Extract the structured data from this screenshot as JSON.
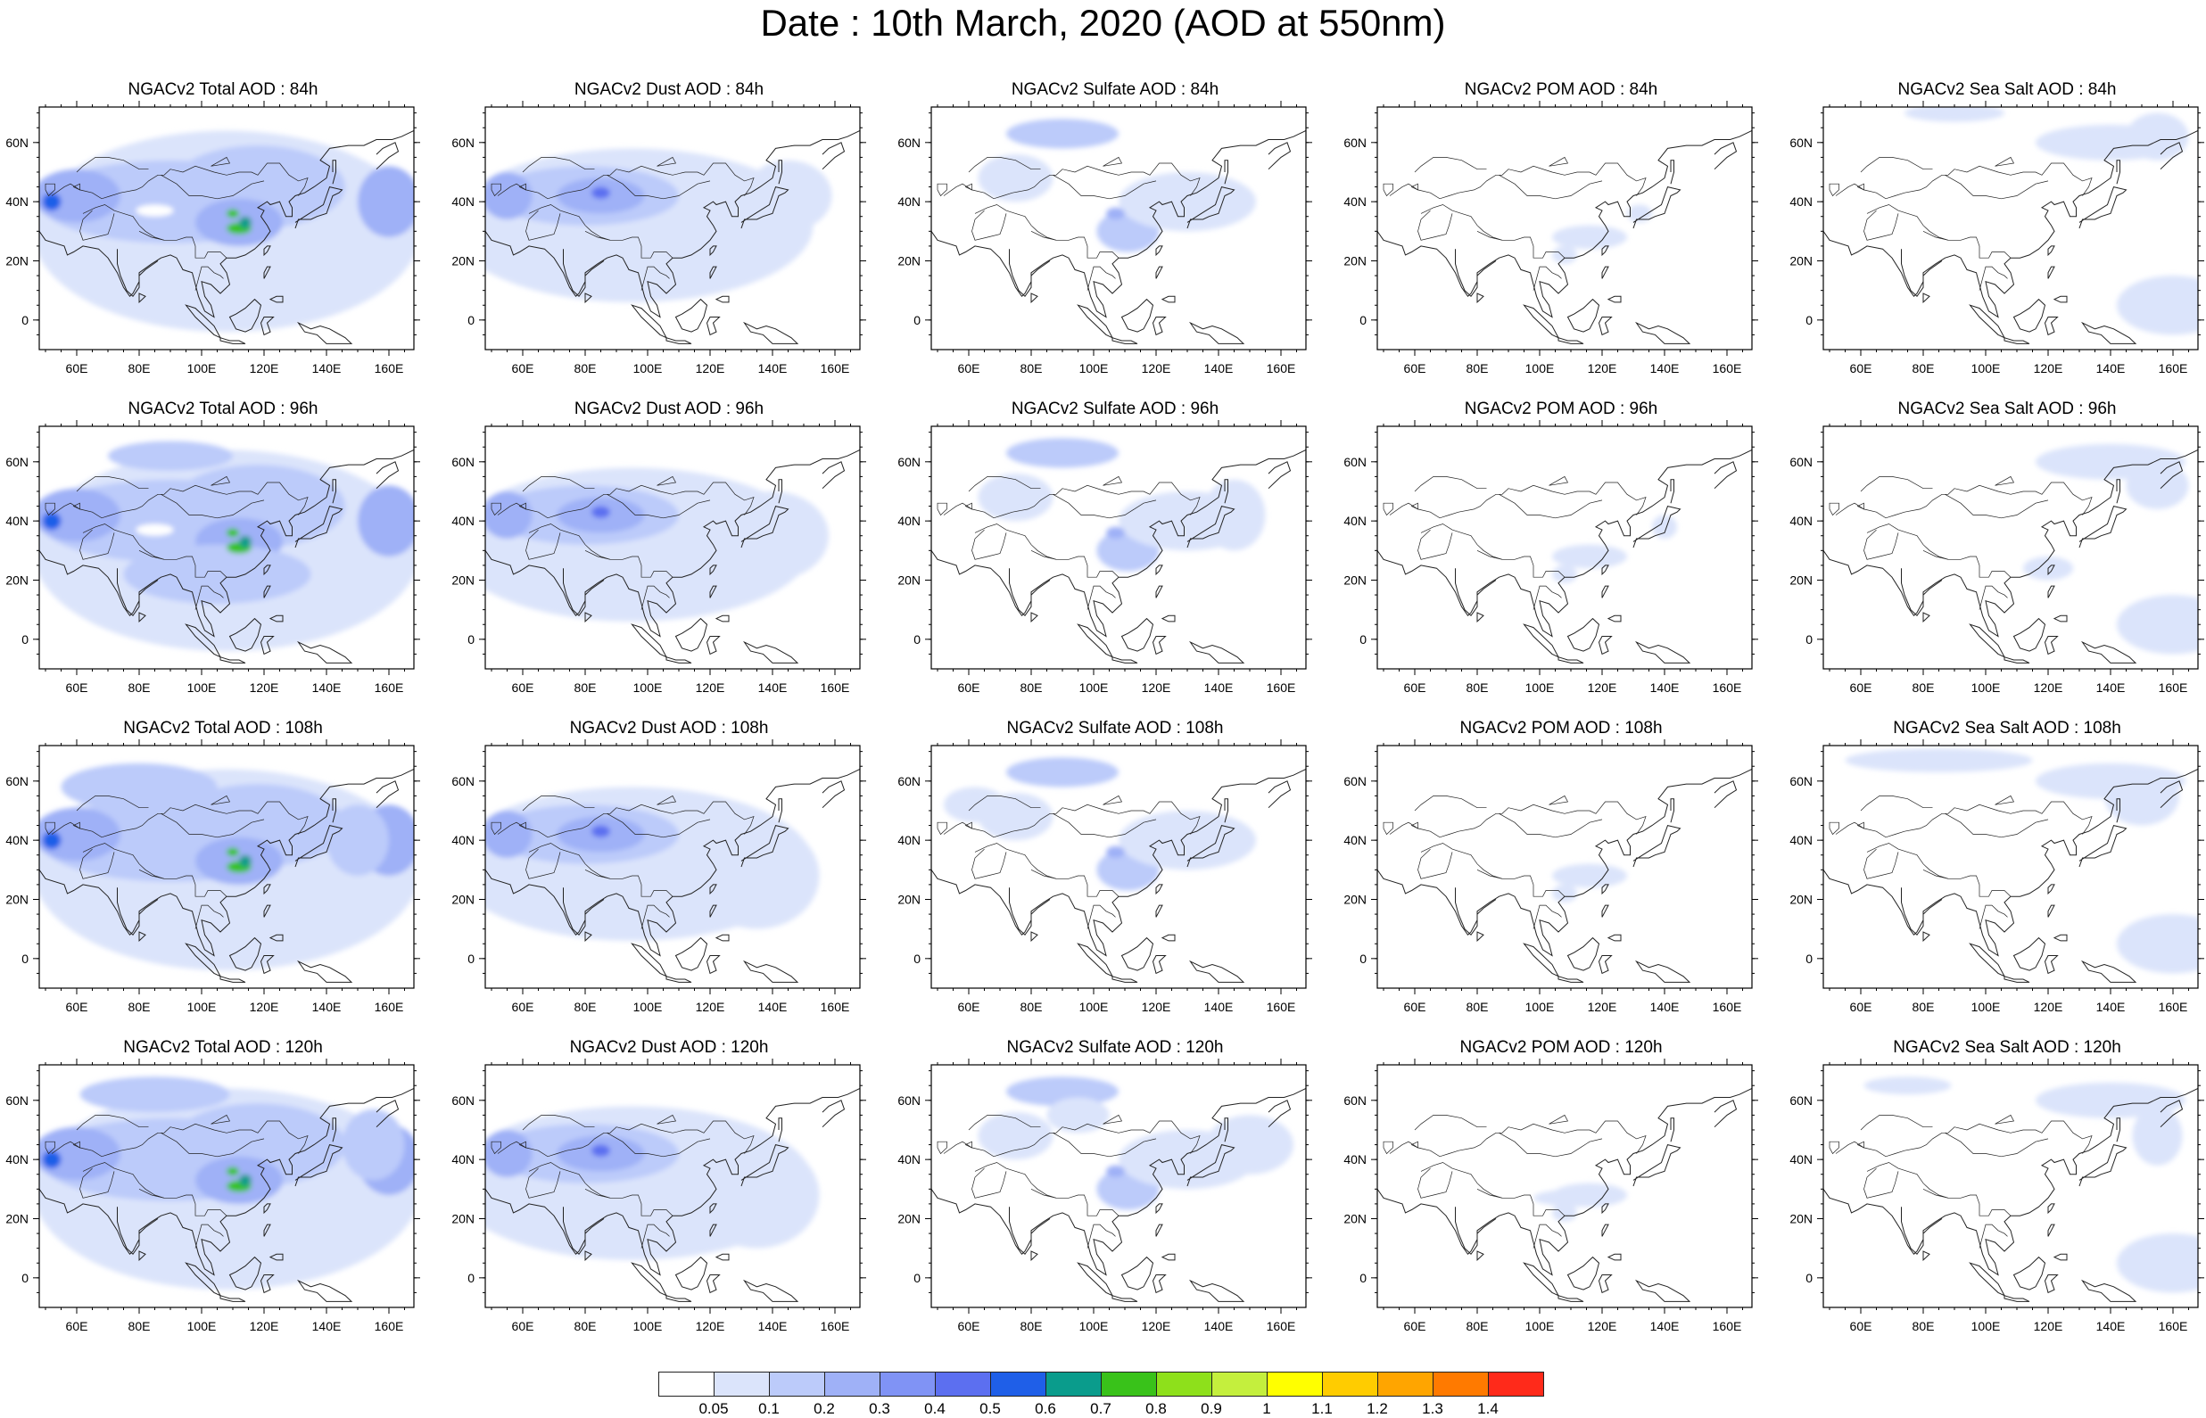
{
  "title": "Date : 10th March, 2020 (AOD at 550nm)",
  "map": {
    "lat_ticks": [
      "60N",
      "40N",
      "20N",
      "0"
    ],
    "lon_ticks": [
      "60E",
      "80E",
      "100E",
      "120E",
      "140E",
      "160E"
    ]
  },
  "panels": [
    {
      "title": "NGACv2 Total AOD : 84h",
      "variable": "Total",
      "lead": "84h"
    },
    {
      "title": "NGACv2 Dust AOD : 84h",
      "variable": "Dust",
      "lead": "84h"
    },
    {
      "title": "NGACv2 Sulfate AOD : 84h",
      "variable": "Sulfate",
      "lead": "84h"
    },
    {
      "title": "NGACv2 POM AOD : 84h",
      "variable": "POM",
      "lead": "84h"
    },
    {
      "title": "NGACv2 Sea Salt AOD : 84h",
      "variable": "SeaSalt",
      "lead": "84h"
    },
    {
      "title": "NGACv2 Total AOD : 96h",
      "variable": "Total",
      "lead": "96h"
    },
    {
      "title": "NGACv2 Dust AOD : 96h",
      "variable": "Dust",
      "lead": "96h"
    },
    {
      "title": "NGACv2 Sulfate AOD : 96h",
      "variable": "Sulfate",
      "lead": "96h"
    },
    {
      "title": "NGACv2 POM AOD : 96h",
      "variable": "POM",
      "lead": "96h"
    },
    {
      "title": "NGACv2 Sea Salt AOD : 96h",
      "variable": "SeaSalt",
      "lead": "96h"
    },
    {
      "title": "NGACv2 Total AOD : 108h",
      "variable": "Total",
      "lead": "108h"
    },
    {
      "title": "NGACv2 Dust AOD : 108h",
      "variable": "Dust",
      "lead": "108h"
    },
    {
      "title": "NGACv2 Sulfate AOD : 108h",
      "variable": "Sulfate",
      "lead": "108h"
    },
    {
      "title": "NGACv2 POM AOD : 108h",
      "variable": "POM",
      "lead": "108h"
    },
    {
      "title": "NGACv2 Sea Salt AOD : 108h",
      "variable": "SeaSalt",
      "lead": "108h"
    },
    {
      "title": "NGACv2 Total AOD : 120h",
      "variable": "Total",
      "lead": "120h"
    },
    {
      "title": "NGACv2 Dust AOD : 120h",
      "variable": "Dust",
      "lead": "120h"
    },
    {
      "title": "NGACv2 Sulfate AOD : 120h",
      "variable": "Sulfate",
      "lead": "120h"
    },
    {
      "title": "NGACv2 POM AOD : 120h",
      "variable": "POM",
      "lead": "120h"
    },
    {
      "title": "NGACv2 Sea Salt  AOD : 120h",
      "variable": "SeaSalt",
      "lead": "120h"
    }
  ],
  "colorbar": {
    "labels": [
      "0.05",
      "0.1",
      "0.2",
      "0.3",
      "0.4",
      "0.5",
      "0.6",
      "0.7",
      "0.8",
      "0.9",
      "1",
      "1.1",
      "1.2",
      "1.3",
      "1.4"
    ],
    "colors": [
      "#ffffff",
      "#dbe4fb",
      "#bccbfa",
      "#9fb1f7",
      "#8093f5",
      "#5c6ff0",
      "#1f5fe8",
      "#0a9c8c",
      "#39c21a",
      "#8ee01b",
      "#c4ef3d",
      "#ffff00",
      "#ffcc00",
      "#ffa500",
      "#ff7a00",
      "#ff2a1a"
    ]
  }
}
